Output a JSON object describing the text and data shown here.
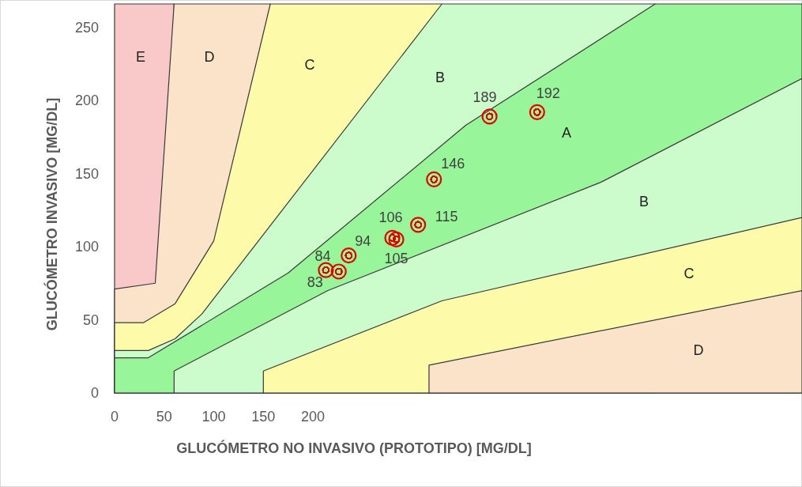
{
  "chart_data": {
    "type": "area",
    "xlabel": "GLUCÓMETRO NO INVASIVO (PROTOTIPO) [MG/DL]",
    "ylabel": "GLUCÓMETRO INVASIVO [MG/DL]",
    "xlim": [
      0,
      693
    ],
    "ylim": [
      0,
      266
    ],
    "xticks": [
      0,
      50,
      100,
      150,
      200
    ],
    "yticks": [
      0,
      50,
      100,
      150,
      200,
      250
    ],
    "grid": false,
    "series": [
      {
        "color": "#f9c9c9",
        "x": [
          0,
          60
        ],
        "values": [
          266,
          266
        ]
      },
      {
        "color": "#fbe3c9",
        "x": [
          0,
          41,
          60,
          157
        ],
        "values": [
          71,
          75,
          266,
          266
        ]
      },
      {
        "color": "#fdfbaa",
        "x": [
          0,
          29,
          61,
          100,
          157,
          330
        ],
        "values": [
          48,
          48,
          61,
          104,
          266,
          266
        ]
      },
      {
        "color": "#ccfccc",
        "x": [
          0,
          34,
          61,
          88,
          330,
          545
        ],
        "values": [
          29,
          29,
          37,
          54,
          266,
          266
        ]
      },
      {
        "color": "#99f599",
        "x": [
          0,
          34,
          175,
          354,
          545,
          693
        ],
        "values": [
          24,
          24,
          82,
          183,
          266,
          266
        ]
      },
      {
        "color": "#ccfccc",
        "x": [
          60,
          215,
          490,
          693
        ],
        "values": [
          15,
          70,
          144,
          215
        ]
      },
      {
        "color": "#fdfbaa",
        "x": [
          150,
          330,
          693
        ],
        "values": [
          15,
          63,
          120
        ]
      },
      {
        "color": "#fbe3c9",
        "x": [
          317,
          693
        ],
        "values": [
          19,
          70
        ]
      },
      {
        "type": "scatter",
        "marker": "circle",
        "color": "#e00000",
        "x": [
          378,
          426,
          322,
          280,
          284,
          306,
          236,
          213,
          226
        ],
        "values": [
          189,
          192,
          146,
          106,
          105,
          115,
          94,
          84,
          83
        ],
        "value_labels": [
          "189",
          "192",
          "146",
          "106",
          "105",
          "115",
          "94",
          "84",
          "83"
        ]
      }
    ],
    "annotations": [
      "E",
      "D",
      "C",
      "B",
      "A",
      "B",
      "C",
      "D"
    ]
  }
}
